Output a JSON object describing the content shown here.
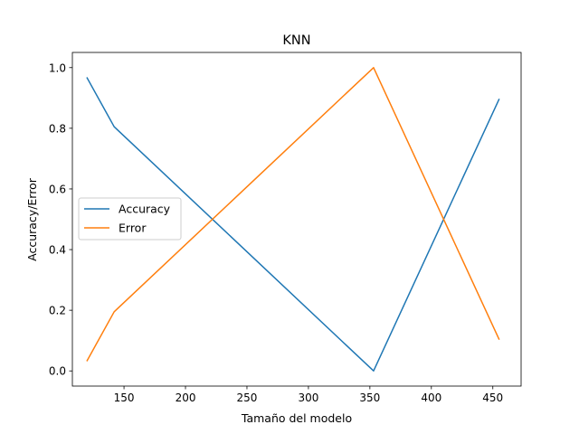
{
  "chart_data": {
    "type": "line",
    "title": "KNN",
    "xlabel": "Tamaño del modelo",
    "ylabel": "Accuracy/Error",
    "xlim": [
      108,
      473
    ],
    "ylim": [
      -0.05,
      1.05
    ],
    "xticks": [
      150,
      200,
      250,
      300,
      350,
      400,
      450
    ],
    "yticks": [
      0.0,
      0.2,
      0.4,
      0.6,
      0.8,
      1.0
    ],
    "xtick_labels": [
      "150",
      "200",
      "250",
      "300",
      "350",
      "400",
      "450"
    ],
    "ytick_labels": [
      "0.0",
      "0.2",
      "0.4",
      "0.6",
      "0.8",
      "1.0"
    ],
    "grid": false,
    "legend_position": "center-left",
    "series": [
      {
        "name": "Accuracy",
        "color": "#1f77b4",
        "x": [
          120,
          142,
          353,
          455
        ],
        "y": [
          0.966,
          0.805,
          0.0,
          0.895
        ]
      },
      {
        "name": "Error",
        "color": "#ff7f0e",
        "x": [
          120,
          142,
          353,
          455
        ],
        "y": [
          0.034,
          0.195,
          1.0,
          0.105
        ]
      }
    ]
  }
}
